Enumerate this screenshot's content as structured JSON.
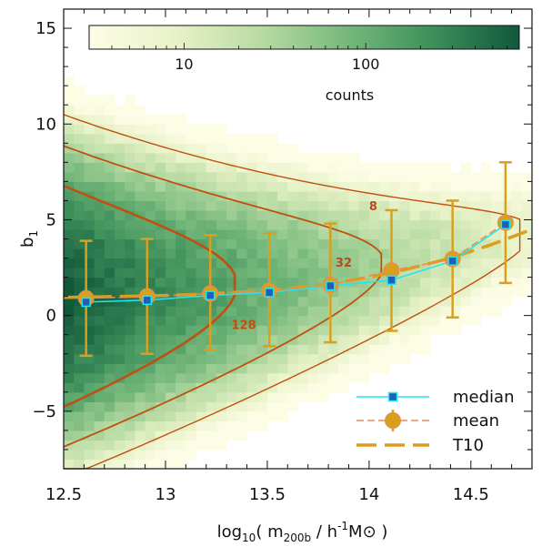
{
  "chart_data": {
    "type": "scatter",
    "title": "",
    "xlabel": "log10( m200b / h-1M⊙ )",
    "xlabel_parts": {
      "pre": "log",
      "sub1": "10",
      "mid": "( m",
      "sub2": "200b",
      "post1": " / h",
      "sup": "-1",
      "post2": "M",
      "sun": "⊙",
      "close": " )"
    },
    "ylabel": "b1",
    "ylabel_parts": {
      "main": "b",
      "sub": "1"
    },
    "xlim": [
      12.5,
      14.8
    ],
    "ylim": [
      -8,
      16
    ],
    "xticks": [
      12.5,
      13,
      13.5,
      14,
      14.5
    ],
    "xtick_labels": [
      "12.5",
      "13",
      "13.5",
      "14",
      "14.5"
    ],
    "yticks": [
      -5,
      0,
      5,
      10,
      15
    ],
    "ytick_labels": [
      "−5",
      "0",
      "5",
      "10",
      "15"
    ],
    "grid": false,
    "legend_position": "bottom-right",
    "colorbar": {
      "label": "counts",
      "tick_labels": [
        "10",
        "100"
      ],
      "tick_values": [
        10,
        100
      ],
      "range": [
        3,
        700
      ],
      "scale": "log",
      "colors": [
        "#fdfde6",
        "#e8f2c8",
        "#b8dba3",
        "#76b87c",
        "#3d8f5a",
        "#11583b"
      ]
    },
    "contour_levels": [
      {
        "label": "8",
        "color": "#b84a1a"
      },
      {
        "label": "32",
        "color": "#b84a1a"
      },
      {
        "label": "128",
        "color": "#c0500f"
      }
    ],
    "series": [
      {
        "name": "median",
        "color": "#20e6f0",
        "marker_color": "#1f5fb8",
        "x": [
          12.61,
          12.91,
          13.22,
          13.51,
          13.81,
          14.11,
          14.41,
          14.67
        ],
        "y": [
          0.7,
          0.8,
          1.05,
          1.2,
          1.55,
          1.85,
          2.85,
          4.75
        ]
      },
      {
        "name": "mean",
        "color": "#d9a020",
        "line_color": "#e98a55",
        "x": [
          12.61,
          12.91,
          13.22,
          13.51,
          13.81,
          14.11,
          14.41,
          14.67
        ],
        "y": [
          0.9,
          1.0,
          1.15,
          1.3,
          1.6,
          2.35,
          2.95,
          4.85
        ],
        "err_low": [
          -2.1,
          -2.0,
          -1.8,
          -1.6,
          -1.4,
          -0.8,
          -0.1,
          1.7
        ],
        "err_high": [
          3.9,
          4.0,
          4.2,
          4.3,
          4.8,
          5.5,
          6.0,
          8.0
        ]
      },
      {
        "name": "T10",
        "color": "#d9a020",
        "x": [
          12.5,
          12.8,
          13.0,
          13.2,
          13.4,
          13.6,
          13.8,
          14.0,
          14.2,
          14.4,
          14.6,
          14.8
        ],
        "y": [
          0.95,
          1.0,
          1.05,
          1.12,
          1.25,
          1.4,
          1.65,
          2.0,
          2.45,
          3.0,
          3.7,
          4.5
        ]
      }
    ]
  }
}
